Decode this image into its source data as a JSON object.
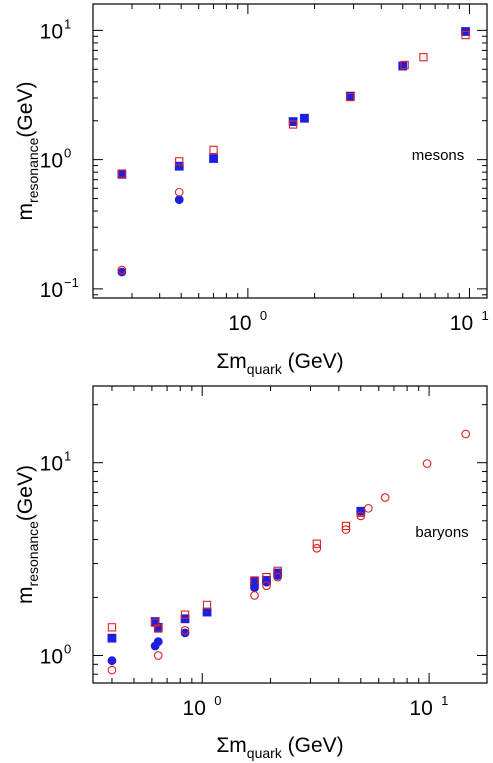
{
  "chart_data": [
    {
      "type": "scatter",
      "panel_label": "mesons",
      "xlabel": {
        "main": "Σm",
        "sub": "quark",
        "tail": " (GeV)"
      },
      "ylabel": {
        "main": "m",
        "sub": "resonance",
        "tail": "(GeV)"
      },
      "xscale": "log",
      "yscale": "log",
      "xlim": [
        0.2,
        12
      ],
      "ylim": [
        0.085,
        16
      ],
      "xticks": [
        {
          "value": 1,
          "label": "10",
          "exp": "0"
        },
        {
          "value": 10,
          "label": "10",
          "exp": "1"
        }
      ],
      "yticks": [
        {
          "value": 0.1,
          "label": "10",
          "exp": "−1"
        },
        {
          "value": 1,
          "label": "10",
          "exp": "0"
        },
        {
          "value": 10,
          "label": "10",
          "exp": "1"
        }
      ],
      "colors": {
        "blue": "#1f1fe0",
        "red": "#e02020"
      },
      "series": [
        {
          "marker": "filled-square",
          "color": "blue",
          "points": [
            [
              0.27,
              0.77
            ],
            [
              0.49,
              0.89
            ],
            [
              0.7,
              1.02
            ],
            [
              1.6,
              1.97
            ],
            [
              1.8,
              2.09
            ],
            [
              2.9,
              3.1
            ],
            [
              5.0,
              5.3
            ],
            [
              9.6,
              9.8
            ]
          ]
        },
        {
          "marker": "open-square",
          "color": "red",
          "points": [
            [
              0.27,
              0.78
            ],
            [
              0.49,
              0.97
            ],
            [
              0.7,
              1.19
            ],
            [
              1.6,
              1.87
            ],
            [
              2.9,
              3.05
            ],
            [
              5.1,
              5.4
            ],
            [
              6.2,
              6.2
            ],
            [
              9.6,
              9.2
            ]
          ]
        },
        {
          "marker": "filled-circle",
          "color": "blue",
          "points": [
            [
              0.27,
              0.135
            ],
            [
              0.49,
              0.49
            ]
          ]
        },
        {
          "marker": "open-circle",
          "color": "red",
          "points": [
            [
              0.27,
              0.14
            ],
            [
              0.49,
              0.56
            ]
          ]
        }
      ]
    },
    {
      "type": "scatter",
      "panel_label": "baryons",
      "xlabel": {
        "main": "Σm",
        "sub": "quark",
        "tail": " (GeV)"
      },
      "ylabel": {
        "main": "m",
        "sub": "resonance",
        "tail": "(GeV)"
      },
      "xscale": "log",
      "yscale": "log",
      "xlim": [
        0.33,
        18
      ],
      "ylim": [
        0.72,
        25
      ],
      "xticks": [
        {
          "value": 1,
          "label": "10",
          "exp": "0"
        },
        {
          "value": 10,
          "label": "10",
          "exp": "1"
        }
      ],
      "yticks": [
        {
          "value": 1,
          "label": "10",
          "exp": "0"
        },
        {
          "value": 10,
          "label": "10",
          "exp": "1"
        }
      ],
      "colors": {
        "blue": "#1f1fe0",
        "red": "#e02020"
      },
      "series": [
        {
          "marker": "filled-square",
          "color": "blue",
          "points": [
            [
              0.4,
              1.23
            ],
            [
              0.62,
              1.5
            ],
            [
              0.64,
              1.4
            ],
            [
              0.84,
              1.55
            ],
            [
              1.05,
              1.68
            ],
            [
              1.7,
              2.42
            ],
            [
              1.92,
              2.45
            ],
            [
              2.15,
              2.68
            ],
            [
              5.0,
              5.6
            ]
          ]
        },
        {
          "marker": "open-square",
          "color": "red",
          "points": [
            [
              0.4,
              1.4
            ],
            [
              0.62,
              1.48
            ],
            [
              0.64,
              1.38
            ],
            [
              0.84,
              1.63
            ],
            [
              1.05,
              1.83
            ],
            [
              1.7,
              2.45
            ],
            [
              1.92,
              2.55
            ],
            [
              2.15,
              2.75
            ],
            [
              3.2,
              3.8
            ],
            [
              4.3,
              4.7
            ],
            [
              5.0,
              5.5
            ]
          ]
        },
        {
          "marker": "filled-circle",
          "color": "blue",
          "points": [
            [
              0.4,
              0.94
            ],
            [
              0.62,
              1.12
            ],
            [
              0.64,
              1.18
            ],
            [
              0.84,
              1.31
            ],
            [
              1.7,
              2.25
            ],
            [
              1.92,
              2.4
            ],
            [
              2.15,
              2.6
            ],
            [
              5.0,
              5.6
            ]
          ]
        },
        {
          "marker": "open-circle",
          "color": "red",
          "points": [
            [
              0.4,
              0.84
            ],
            [
              0.64,
              1.0
            ],
            [
              0.84,
              1.35
            ],
            [
              1.7,
              2.05
            ],
            [
              1.92,
              2.3
            ],
            [
              2.15,
              2.55
            ],
            [
              3.2,
              3.6
            ],
            [
              4.3,
              4.5
            ],
            [
              5.0,
              5.3
            ],
            [
              5.4,
              5.8
            ],
            [
              6.4,
              6.6
            ],
            [
              9.8,
              9.9
            ],
            [
              14.5,
              14.1
            ]
          ]
        }
      ]
    }
  ]
}
